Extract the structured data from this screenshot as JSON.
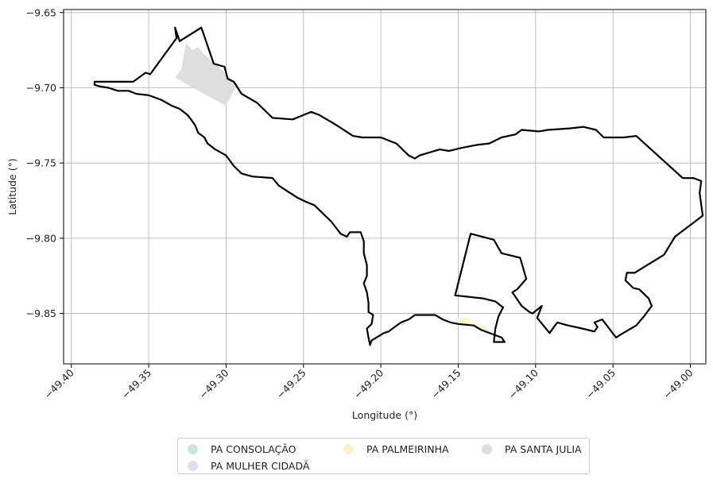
{
  "chart_data": {
    "type": "map",
    "xlabel": "Longitude (°)",
    "ylabel": "Latitude (°)",
    "xlim": [
      -49.405,
      -48.99
    ],
    "ylim": [
      -9.8835,
      -9.648
    ],
    "xticks": [
      -49.4,
      -49.35,
      -49.3,
      -49.25,
      -49.2,
      -49.15,
      -49.1,
      -49.05,
      -49.0
    ],
    "xtick_labels": [
      "−49.40",
      "−49.35",
      "−49.30",
      "−49.25",
      "−49.20",
      "−49.15",
      "−49.10",
      "−49.05",
      "−49.00"
    ],
    "yticks": [
      -9.65,
      -9.7,
      -9.75,
      -9.8,
      -9.85
    ],
    "ytick_labels": [
      "−9.65",
      "−9.70",
      "−9.75",
      "−9.80",
      "−9.85"
    ],
    "grid": true,
    "legend_position": "bottom-center",
    "boundary": [
      [
        -49.385,
        -9.696
      ],
      [
        -49.36,
        -9.696
      ],
      [
        -49.352,
        -9.69
      ],
      [
        -49.349,
        -9.691
      ],
      [
        -49.332,
        -9.667
      ],
      [
        -49.333,
        -9.66
      ],
      [
        -49.33,
        -9.669
      ],
      [
        -49.316,
        -9.66
      ],
      [
        -49.312,
        -9.672
      ],
      [
        -49.308,
        -9.684
      ],
      [
        -49.301,
        -9.686
      ],
      [
        -49.299,
        -9.694
      ],
      [
        -49.295,
        -9.696
      ],
      [
        -49.29,
        -9.704
      ],
      [
        -49.28,
        -9.71
      ],
      [
        -49.27,
        -9.72
      ],
      [
        -49.257,
        -9.721
      ],
      [
        -49.245,
        -9.716
      ],
      [
        -49.24,
        -9.718
      ],
      [
        -49.23,
        -9.724
      ],
      [
        -49.218,
        -9.732
      ],
      [
        -49.212,
        -9.733
      ],
      [
        -49.2,
        -9.733
      ],
      [
        -49.19,
        -9.737
      ],
      [
        -49.182,
        -9.745
      ],
      [
        -49.178,
        -9.747
      ],
      [
        -49.175,
        -9.745
      ],
      [
        -49.162,
        -9.741
      ],
      [
        -49.156,
        -9.742
      ],
      [
        -49.148,
        -9.74
      ],
      [
        -49.138,
        -9.738
      ],
      [
        -49.13,
        -9.737
      ],
      [
        -49.122,
        -9.733
      ],
      [
        -49.113,
        -9.731
      ],
      [
        -49.109,
        -9.728
      ],
      [
        -49.098,
        -9.729
      ],
      [
        -49.092,
        -9.728
      ],
      [
        -49.078,
        -9.727
      ],
      [
        -49.069,
        -9.726
      ],
      [
        -49.061,
        -9.728
      ],
      [
        -49.056,
        -9.733
      ],
      [
        -49.043,
        -9.733
      ],
      [
        -49.035,
        -9.732
      ],
      [
        -49.005,
        -9.76
      ],
      [
        -48.998,
        -9.76
      ],
      [
        -48.993,
        -9.762
      ],
      [
        -48.994,
        -9.77
      ],
      [
        -48.992,
        -9.785
      ],
      [
        -49.01,
        -9.799
      ],
      [
        -49.017,
        -9.811
      ],
      [
        -49.036,
        -9.823
      ],
      [
        -49.041,
        -9.823
      ],
      [
        -49.042,
        -9.828
      ],
      [
        -49.037,
        -9.833
      ],
      [
        -49.033,
        -9.834
      ],
      [
        -49.027,
        -9.84
      ],
      [
        -49.025,
        -9.845
      ],
      [
        -49.03,
        -9.852
      ],
      [
        -49.035,
        -9.858
      ],
      [
        -49.045,
        -9.864
      ],
      [
        -49.048,
        -9.866
      ],
      [
        -49.057,
        -9.854
      ],
      [
        -49.062,
        -9.856
      ],
      [
        -49.06,
        -9.859
      ],
      [
        -49.062,
        -9.862
      ],
      [
        -49.07,
        -9.86
      ],
      [
        -49.079,
        -9.858
      ],
      [
        -49.086,
        -9.856
      ],
      [
        -49.091,
        -9.863
      ],
      [
        -49.099,
        -9.853
      ],
      [
        -49.096,
        -9.845
      ],
      [
        -49.102,
        -9.85
      ],
      [
        -49.104,
        -9.849
      ],
      [
        -49.109,
        -9.845
      ],
      [
        -49.115,
        -9.836
      ],
      [
        -49.112,
        -9.834
      ],
      [
        -49.106,
        -9.827
      ],
      [
        -49.11,
        -9.813
      ],
      [
        -49.122,
        -9.81
      ],
      [
        -49.127,
        -9.801
      ],
      [
        -49.142,
        -9.797
      ],
      [
        -49.152,
        -9.838
      ],
      [
        -49.134,
        -9.84
      ],
      [
        -49.126,
        -9.842
      ],
      [
        -49.121,
        -9.846
      ],
      [
        -49.124,
        -9.852
      ],
      [
        -49.126,
        -9.86
      ],
      [
        -49.127,
        -9.869
      ],
      [
        -49.12,
        -9.869
      ],
      [
        -49.122,
        -9.866
      ],
      [
        -49.135,
        -9.861
      ],
      [
        -49.14,
        -9.858
      ],
      [
        -49.15,
        -9.857
      ],
      [
        -49.155,
        -9.856
      ],
      [
        -49.16,
        -9.854
      ],
      [
        -49.165,
        -9.851
      ],
      [
        -49.172,
        -9.851
      ],
      [
        -49.178,
        -9.851
      ],
      [
        -49.182,
        -9.854
      ],
      [
        -49.187,
        -9.856
      ],
      [
        -49.195,
        -9.862
      ],
      [
        -49.198,
        -9.863
      ],
      [
        -49.206,
        -9.868
      ],
      [
        -49.207,
        -9.871
      ],
      [
        -49.208,
        -9.866
      ],
      [
        -49.209,
        -9.86
      ],
      [
        -49.206,
        -9.857
      ],
      [
        -49.205,
        -9.851
      ],
      [
        -49.208,
        -9.849
      ],
      [
        -49.208,
        -9.843
      ],
      [
        -49.209,
        -9.836
      ],
      [
        -49.211,
        -9.83
      ],
      [
        -49.209,
        -9.825
      ],
      [
        -49.209,
        -9.818
      ],
      [
        -49.211,
        -9.81
      ],
      [
        -49.211,
        -9.802
      ],
      [
        -49.213,
        -9.796
      ],
      [
        -49.22,
        -9.796
      ],
      [
        -49.222,
        -9.799
      ],
      [
        -49.226,
        -9.797
      ],
      [
        -49.232,
        -9.789
      ],
      [
        -49.237,
        -9.784
      ],
      [
        -49.243,
        -9.778
      ],
      [
        -49.248,
        -9.776
      ],
      [
        -49.254,
        -9.773
      ],
      [
        -49.26,
        -9.769
      ],
      [
        -49.266,
        -9.765
      ],
      [
        -49.27,
        -9.76
      ],
      [
        -49.283,
        -9.759
      ],
      [
        -49.29,
        -9.757
      ],
      [
        -49.295,
        -9.752
      ],
      [
        -49.3,
        -9.745
      ],
      [
        -49.307,
        -9.741
      ],
      [
        -49.312,
        -9.737
      ],
      [
        -49.314,
        -9.733
      ],
      [
        -49.318,
        -9.73
      ],
      [
        -49.32,
        -9.725
      ],
      [
        -49.322,
        -9.722
      ],
      [
        -49.325,
        -9.718
      ],
      [
        -49.33,
        -9.714
      ],
      [
        -49.335,
        -9.712
      ],
      [
        -49.342,
        -9.708
      ],
      [
        -49.35,
        -9.705
      ],
      [
        -49.358,
        -9.704
      ],
      [
        -49.363,
        -9.702
      ],
      [
        -49.37,
        -9.702
      ],
      [
        -49.376,
        -9.7
      ],
      [
        -49.382,
        -9.699
      ],
      [
        -49.385,
        -9.698
      ]
    ],
    "series": [
      {
        "name": "PA CONSOLAÇÃO",
        "color": "#c9ead5",
        "polygons": [
          [
            [
              -49.188,
              -9.857
            ],
            [
              -49.186,
              -9.855
            ],
            [
              -49.184,
              -9.856
            ],
            [
              -49.186,
              -9.858
            ]
          ]
        ]
      },
      {
        "name": "PA MULHER CIDADÃ",
        "color": "#dcdeee",
        "polygons": []
      },
      {
        "name": "PA PALMEIRINHA",
        "color": "#fff2c8",
        "polygons": [
          [
            [
              -49.152,
              -9.854
            ],
            [
              -49.146,
              -9.853
            ],
            [
              -49.143,
              -9.854
            ],
            [
              -49.14,
              -9.857
            ],
            [
              -49.132,
              -9.859
            ],
            [
              -49.13,
              -9.862
            ],
            [
              -49.136,
              -9.862
            ],
            [
              -49.142,
              -9.858
            ],
            [
              -49.15,
              -9.856
            ]
          ]
        ]
      },
      {
        "name": "PA SANTA JULIA",
        "color": "#dedede",
        "polygons": [
          [
            [
              -49.333,
              -9.693
            ],
            [
              -49.329,
              -9.688
            ],
            [
              -49.326,
              -9.67
            ],
            [
              -49.322,
              -9.675
            ],
            [
              -49.318,
              -9.673
            ],
            [
              -49.315,
              -9.677
            ],
            [
              -49.307,
              -9.684
            ],
            [
              -49.301,
              -9.69
            ],
            [
              -49.293,
              -9.698
            ],
            [
              -49.3,
              -9.712
            ],
            [
              -49.325,
              -9.698
            ]
          ]
        ]
      }
    ]
  }
}
